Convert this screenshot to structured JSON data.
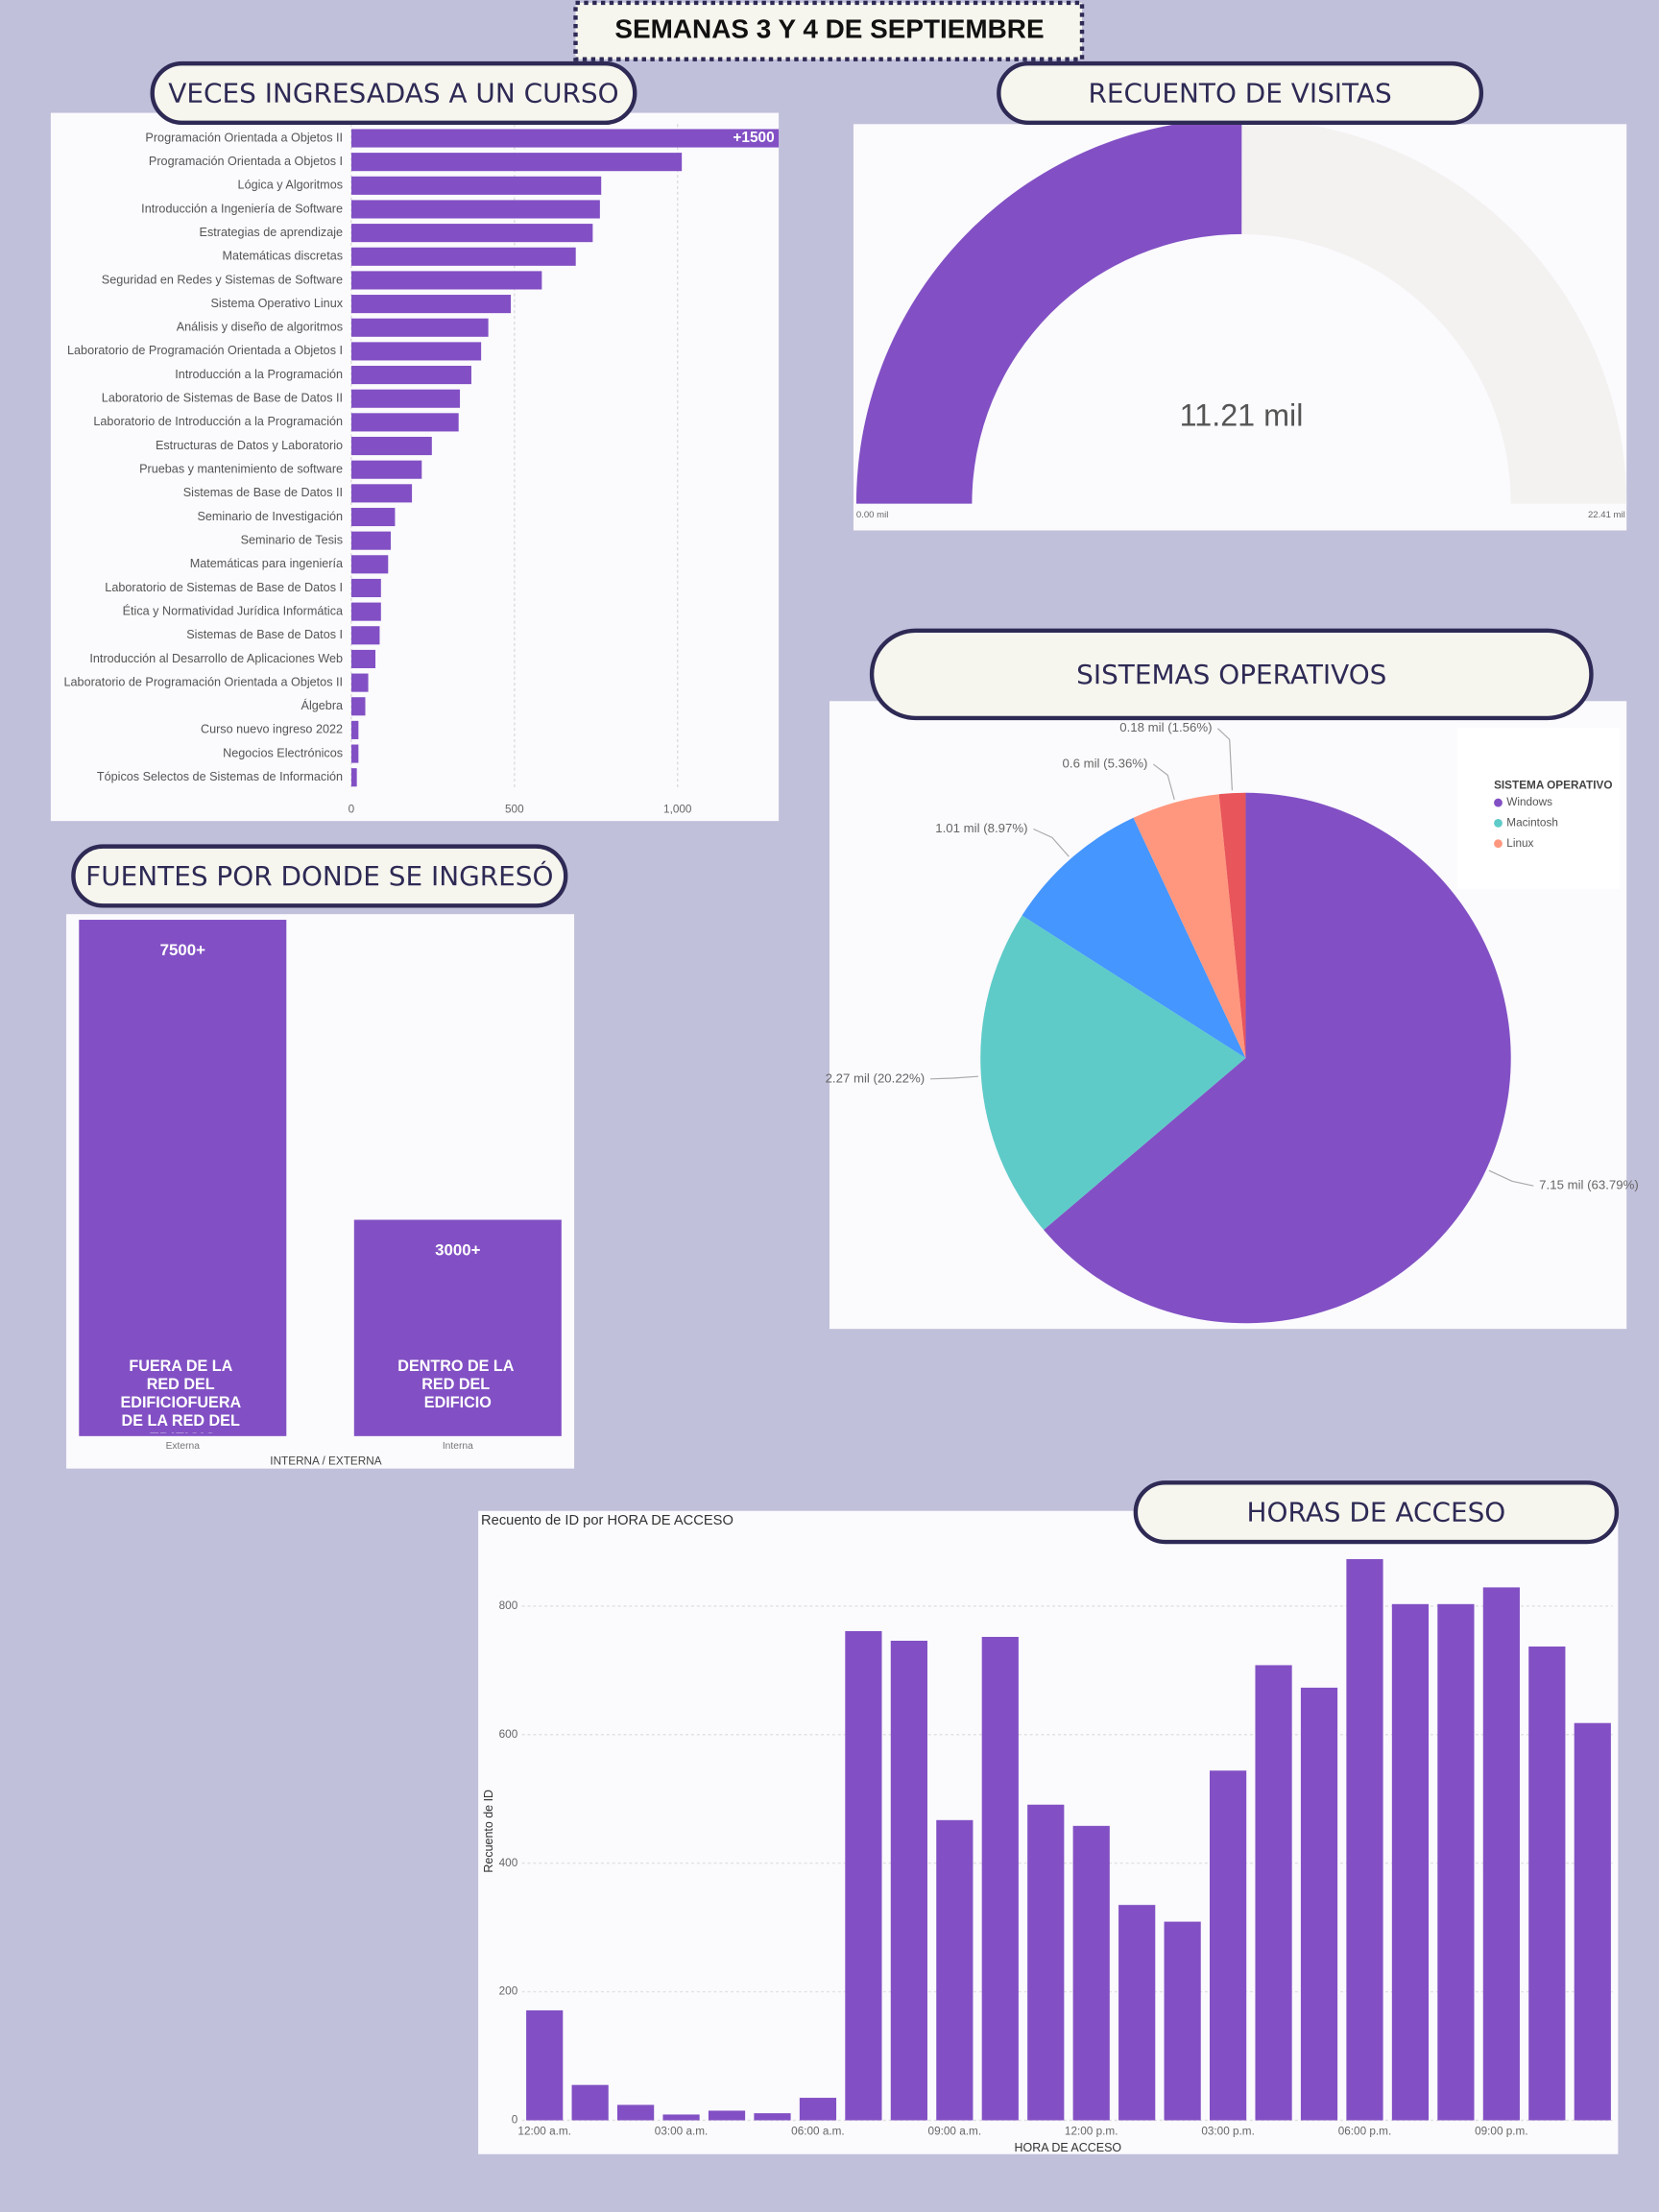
{
  "title": "SEMANAS 3 Y 4 DE SEPTIEMBRE",
  "chart_data": [
    {
      "type": "hbar",
      "title": "VECES INGRESADAS A UN CURSO",
      "color": "#8250c4",
      "categories": [
        "Programación Orientada a Objetos II",
        "Programación Orientada a Objetos I",
        "Lógica y Algoritmos",
        "Introducción a Ingeniería de Software",
        "Estrategias de aprendizaje",
        "Matemáticas discretas",
        "Seguridad en Redes y Sistemas de Software",
        "Sistema Operativo Linux",
        "Análisis y diseño de algoritmos",
        "Laboratorio de Programación Orientada a Objetos I",
        "Introducción a la Programación",
        "Laboratorio de Sistemas de Base de Datos II",
        "Laboratorio de Introducción a la Programación",
        "Estructuras de Datos y Laboratorio",
        "Pruebas y mantenimiento de software",
        "Sistemas de Base de Datos II",
        "Seminario de Investigación",
        "Seminario de Tesis",
        "Matemáticas para ingeniería",
        "Laboratorio de Sistemas de Base de Datos I",
        "Ética y Normatividad Jurídica Informática",
        "Sistemas de Base de Datos I",
        "Introducción al Desarrollo de Aplicaciones Web",
        "Laboratorio de Programación Orientada a Objetos II",
        "Álgebra",
        "Curso nuevo ingreso 2022",
        "Negocios Electrónicos",
        "Tópicos Selectos de Sistemas de Información"
      ],
      "values": [
        1500,
        1013,
        766,
        762,
        740,
        688,
        584,
        489,
        420,
        398,
        368,
        333,
        329,
        247,
        216,
        186,
        134,
        121,
        113,
        91,
        91,
        87,
        74,
        52,
        43,
        22,
        22,
        17
      ],
      "value_labels": [
        "+1500",
        null,
        null,
        null,
        null,
        null,
        null,
        null,
        null,
        null,
        null,
        null,
        null,
        null,
        null,
        null,
        null,
        null,
        null,
        null,
        null,
        null,
        null,
        null,
        null,
        null,
        null,
        null
      ],
      "xlim": [
        0,
        1310
      ],
      "xticks": [
        0,
        500,
        {
          "value": 1000,
          "label": "1,000"
        }
      ],
      "grid": true
    },
    {
      "type": "gauge",
      "title": "RECUENTO DE VISITAS",
      "color": "#8250c4",
      "track_color": "#f3f2f1",
      "values": [
        11.21
      ],
      "value_labels": [
        "11.21 mil"
      ],
      "ylim": [
        0,
        22.41
      ],
      "yticks": [
        {
          "value": 0,
          "label": "0.00 mil"
        },
        {
          "value": 22.41,
          "label": "22.41 mil"
        }
      ]
    },
    {
      "type": "pie",
      "title": "SISTEMAS OPERATIVOS",
      "legend_title": "SISTEMA OPERATIVO",
      "legend": "top-right",
      "categories": [
        "Windows",
        "Macintosh",
        null,
        "Linux",
        null
      ],
      "values": [
        7.15,
        2.27,
        1.01,
        0.6,
        0.18
      ],
      "value_labels": [
        "7.15 mil (63.79%)",
        "2.27 mil (20.22%)",
        "1.01 mil (8.97%)",
        "0.6 mil (5.36%)",
        "0.18 mil (1.56%)"
      ],
      "colors": [
        "#8250c4",
        "#5ecbc8",
        "#4596ff",
        "#ff977e",
        "#e8555a"
      ]
    },
    {
      "type": "bar",
      "title": "FUENTES POR DONDE SE INGRESÓ",
      "color": "#8250c4",
      "categories": [
        "Externa",
        "Interna"
      ],
      "values": [
        7900,
        3310
      ],
      "bar_labels": [
        "7500+",
        "3000+"
      ],
      "inner_labels": [
        "FUERA DE LA RED DEL EDIFICIOFUERA DE LA RED DEL EDIFICIO",
        "DENTRO DE LA RED DEL EDIFICIO"
      ],
      "xlabel": "INTERNA / EXTERNA",
      "ylim": [
        0,
        7900
      ]
    },
    {
      "type": "bar",
      "title": "HORAS DE ACCESO",
      "subtitle": "Recuento de ID por HORA DE ACCESO",
      "color": "#8250c4",
      "xlabel": "HORA DE ACCESO",
      "ylabel": "Recuento de ID",
      "categories": [
        "12:00 a.m.",
        null,
        null,
        "03:00 a.m.",
        null,
        null,
        "06:00 a.m.",
        null,
        null,
        "09:00 a.m.",
        null,
        null,
        "12:00 p.m.",
        null,
        null,
        "03:00 p.m.",
        null,
        null,
        "06:00 p.m.",
        null,
        null,
        "09:00 p.m.",
        null,
        null
      ],
      "values": [
        171,
        55,
        24,
        9,
        15,
        11,
        35,
        761,
        746,
        467,
        752,
        491,
        458,
        335,
        309,
        544,
        708,
        673,
        873,
        803,
        803,
        829,
        737,
        618
      ],
      "ylim": [
        0,
        880
      ],
      "yticks": [
        0,
        200,
        400,
        600,
        800
      ],
      "grid": true
    }
  ]
}
